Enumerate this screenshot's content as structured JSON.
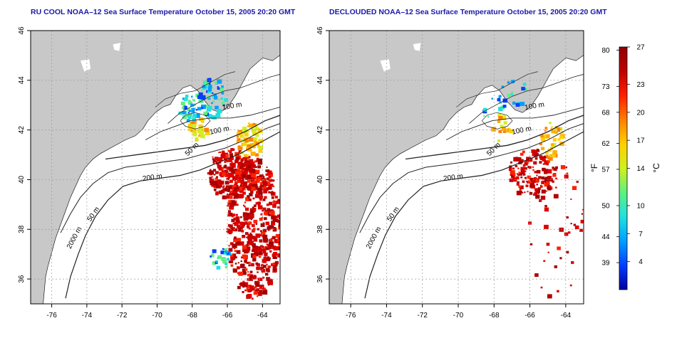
{
  "maps": [
    {
      "id": "left",
      "title": "RU COOL NOAA–12 Sea Surface Temperature October 15, 2005 20:20 GMT",
      "variant": "raw"
    },
    {
      "id": "right",
      "title": "DECLOUDED NOAA–12 Sea Surface Temperature October 15, 2005 20:20 GMT",
      "variant": "declouded"
    }
  ],
  "axes": {
    "lon_ticks": [
      "-76",
      "-74",
      "-72",
      "-70",
      "-68",
      "-66",
      "-64"
    ],
    "lat_ticks": [
      "36",
      "38",
      "40",
      "42",
      "44",
      "46"
    ],
    "lon_range": [
      -77.2,
      -63.0
    ],
    "lat_range": [
      35.0,
      46.0
    ],
    "grid": "dotted"
  },
  "contour_labels": [
    "100 m",
    "100 m",
    "50 m",
    "200 m",
    "50 m",
    "2000 m"
  ],
  "colorbar": {
    "unit_left": "°F",
    "unit_right": "°C",
    "fahrenheit_ticks": [
      "80",
      "73",
      "68",
      "62",
      "57",
      "50",
      "44",
      "39"
    ],
    "celsius_ticks": [
      "27",
      "23",
      "20",
      "17",
      "14",
      "10",
      "7",
      "4"
    ],
    "colors": [
      "#0000a0",
      "#0040ff",
      "#00a0ff",
      "#20e0e0",
      "#60f080",
      "#d0f020",
      "#ffd000",
      "#ff8000",
      "#ff2000",
      "#c00000",
      "#900000"
    ]
  },
  "style": {
    "land_color": "#c8c8c8",
    "ocean_color": "#ffffff",
    "title_color": "#1a1aa8"
  }
}
